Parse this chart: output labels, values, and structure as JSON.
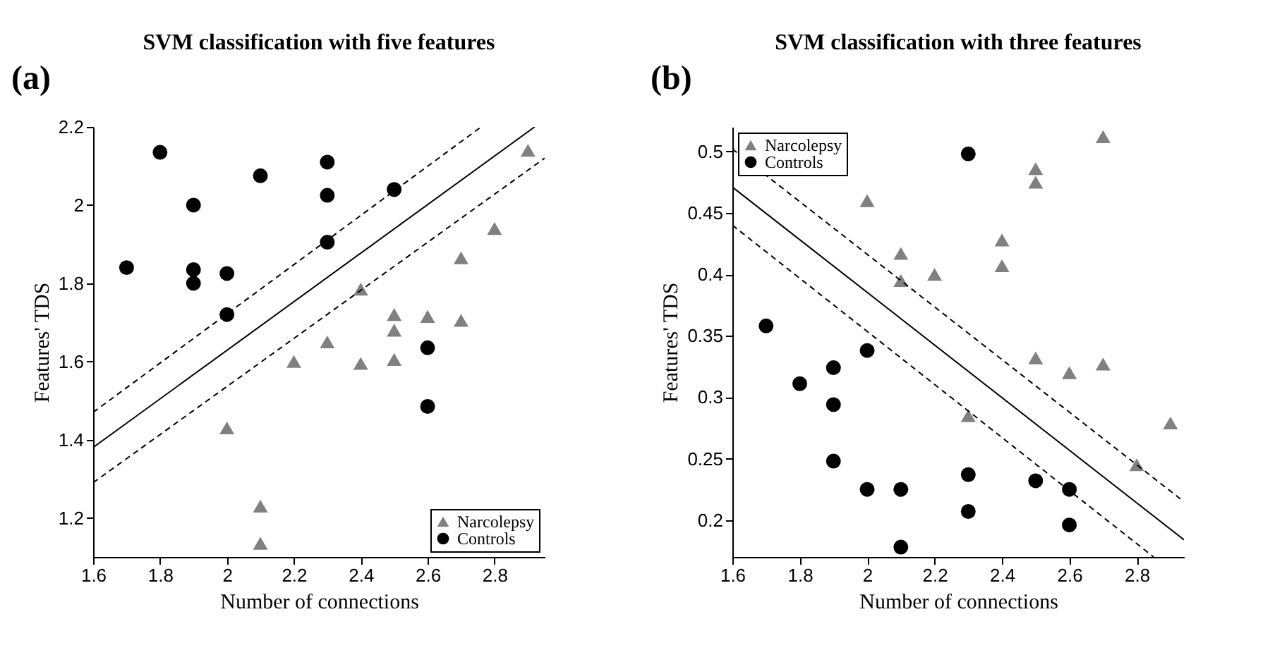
{
  "chart_data": [
    {
      "type": "scatter",
      "title": "SVM classification with five features",
      "xlabel": "Number of connections",
      "ylabel": "Features' TDS",
      "annotations": [
        "(a)"
      ],
      "xlim": [
        1.6,
        2.95
      ],
      "ylim": [
        1.1,
        2.2
      ],
      "xticks": [
        1.6,
        1.8,
        2,
        2.2,
        2.4,
        2.6,
        2.8
      ],
      "yticks": [
        1.2,
        1.4,
        1.6,
        1.8,
        2,
        2.2
      ],
      "grid": false,
      "legend": "bottom right",
      "series": [
        {
          "name": "Narcolepsy",
          "color": "#808080",
          "marker": "triangle",
          "x": [
            2.0,
            2.1,
            2.1,
            2.2,
            2.3,
            2.4,
            2.4,
            2.5,
            2.5,
            2.5,
            2.6,
            2.7,
            2.7,
            2.8,
            2.9
          ],
          "values": [
            1.43,
            1.23,
            1.135,
            1.6,
            1.65,
            1.785,
            1.595,
            1.72,
            1.68,
            1.605,
            1.715,
            1.705,
            1.865,
            1.94,
            2.14
          ]
        },
        {
          "name": "Controls",
          "color": "#000000",
          "marker": "circle",
          "x": [
            1.7,
            1.8,
            1.9,
            1.9,
            1.9,
            2.0,
            2.0,
            2.1,
            2.3,
            2.3,
            2.3,
            2.5,
            2.6,
            2.6
          ],
          "values": [
            1.84,
            2.135,
            2.0,
            1.835,
            1.8,
            1.825,
            1.72,
            2.075,
            2.11,
            2.025,
            1.905,
            2.04,
            1.635,
            1.485
          ]
        },
        {
          "type": "line",
          "color": "#000000",
          "line_style": "solid",
          "marker": "none",
          "x": [
            1.6,
            2.92
          ],
          "values": [
            1.38,
            2.2
          ]
        },
        {
          "type": "line",
          "color": "#000000",
          "line_style": "dashed",
          "marker": "none",
          "x": [
            1.6,
            2.76
          ],
          "values": [
            1.47,
            2.2
          ]
        },
        {
          "type": "line",
          "color": "#000000",
          "line_style": "dashed",
          "marker": "none",
          "x": [
            1.6,
            2.95
          ],
          "values": [
            1.29,
            2.12
          ]
        }
      ]
    },
    {
      "type": "scatter",
      "title": "SVM classification with three features",
      "xlabel": "Number of connections",
      "ylabel": "Features' TDS",
      "annotations": [
        "(b)"
      ],
      "xlim": [
        1.6,
        2.94
      ],
      "ylim": [
        0.17,
        0.52
      ],
      "xticks": [
        1.6,
        1.8,
        2,
        2.2,
        2.4,
        2.6,
        2.8
      ],
      "yticks": [
        0.2,
        0.25,
        0.3,
        0.35,
        0.4,
        0.45,
        0.5
      ],
      "grid": false,
      "legend": "top left",
      "series": [
        {
          "name": "Narcolepsy",
          "color": "#808080",
          "marker": "triangle",
          "x": [
            2.0,
            2.1,
            2.1,
            2.2,
            2.3,
            2.4,
            2.4,
            2.5,
            2.5,
            2.5,
            2.6,
            2.7,
            2.7,
            2.8,
            2.9
          ],
          "values": [
            0.46,
            0.417,
            0.395,
            0.4,
            0.285,
            0.428,
            0.407,
            0.486,
            0.475,
            0.332,
            0.32,
            0.512,
            0.327,
            0.245,
            0.279
          ]
        },
        {
          "name": "Controls",
          "color": "#000000",
          "marker": "circle",
          "x": [
            1.7,
            1.8,
            1.9,
            1.9,
            1.9,
            2.0,
            2.0,
            2.1,
            2.1,
            2.3,
            2.3,
            2.3,
            2.5,
            2.6,
            2.6
          ],
          "values": [
            0.358,
            0.311,
            0.324,
            0.294,
            0.248,
            0.338,
            0.225,
            0.225,
            0.178,
            0.498,
            0.237,
            0.207,
            0.232,
            0.225,
            0.196
          ]
        },
        {
          "type": "line",
          "color": "#000000",
          "line_style": "solid",
          "marker": "none",
          "x": [
            1.6,
            2.94
          ],
          "values": [
            0.471,
            0.184
          ]
        },
        {
          "type": "line",
          "color": "#000000",
          "line_style": "dashed",
          "marker": "none",
          "x": [
            1.6,
            2.94
          ],
          "values": [
            0.502,
            0.215
          ]
        },
        {
          "type": "line",
          "color": "#000000",
          "line_style": "dashed",
          "marker": "none",
          "x": [
            1.6,
            2.85
          ],
          "values": [
            0.44,
            0.17
          ]
        }
      ]
    }
  ]
}
